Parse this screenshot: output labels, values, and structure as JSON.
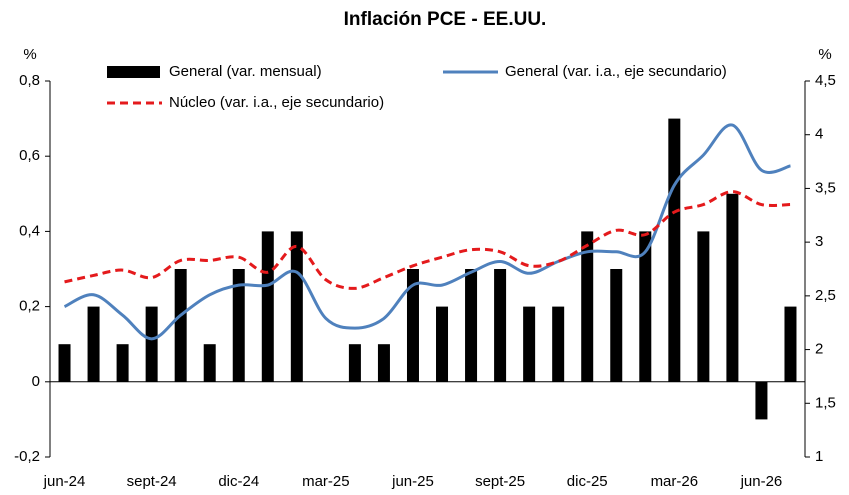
{
  "chart_data": {
    "type": "bar_line",
    "title": "Inflación PCE - EE.UU.",
    "y_label": "%",
    "y2_label": "%",
    "categories": [
      "jun-24",
      null,
      null,
      "sept-24",
      null,
      null,
      "dic-24",
      null,
      null,
      "mar-25",
      null,
      null,
      "jun-25",
      null,
      null,
      "sept-25",
      null,
      null,
      "dic-25",
      null,
      null,
      "mar-26",
      null,
      null,
      "jun-26",
      null
    ],
    "ylim": [
      -0.2,
      0.8
    ],
    "yticks": [
      {
        "value": -0.2,
        "label": "-0,2"
      },
      0,
      {
        "value": 0.2,
        "label": "0,2"
      },
      {
        "value": 0.4,
        "label": "0,4"
      },
      {
        "value": 0.6,
        "label": "0,6"
      },
      {
        "value": 0.8,
        "label": "0,8"
      }
    ],
    "y2lim": [
      1,
      4.5
    ],
    "y2ticks": [
      1,
      {
        "value": 1.5,
        "label": "1,5"
      },
      2,
      {
        "value": 2.5,
        "label": "2,5"
      },
      3,
      {
        "value": 3.5,
        "label": "3,5"
      },
      4,
      {
        "value": 4.5,
        "label": "4,5"
      }
    ],
    "series": [
      {
        "name": "General (var. mensual)",
        "kind": "bar",
        "color": "#000000",
        "values": [
          0.1,
          0.2,
          0.1,
          0.2,
          0.3,
          0.1,
          0.3,
          0.4,
          0.4,
          0,
          0.1,
          0.1,
          0.3,
          0.2,
          0.3,
          0.3,
          0.2,
          0.2,
          0.4,
          0.3,
          0.4,
          0.7,
          0.4,
          0.5,
          -0.1,
          0.2
        ]
      },
      {
        "name": "General (var. i.a., eje secundario)",
        "kind": "line",
        "axis": "y2",
        "color": "#4f81bd",
        "values": [
          2.4,
          2.51,
          2.32,
          2.1,
          2.32,
          2.51,
          2.6,
          2.6,
          2.72,
          2.29,
          2.2,
          2.29,
          2.6,
          2.6,
          2.72,
          2.82,
          2.71,
          2.82,
          2.91,
          2.91,
          2.91,
          3.53,
          3.81,
          4.09,
          3.67,
          3.71
        ]
      },
      {
        "name": "Núcleo (var. i.a., eje secundario)",
        "kind": "dashed-line",
        "axis": "y2",
        "color": "#e41a1c",
        "values": [
          2.63,
          2.69,
          2.74,
          2.67,
          2.83,
          2.83,
          2.86,
          2.72,
          2.96,
          2.65,
          2.57,
          2.67,
          2.78,
          2.86,
          2.93,
          2.91,
          2.78,
          2.82,
          2.97,
          3.11,
          3.07,
          3.28,
          3.35,
          3.47,
          3.35,
          3.35
        ]
      }
    ]
  }
}
